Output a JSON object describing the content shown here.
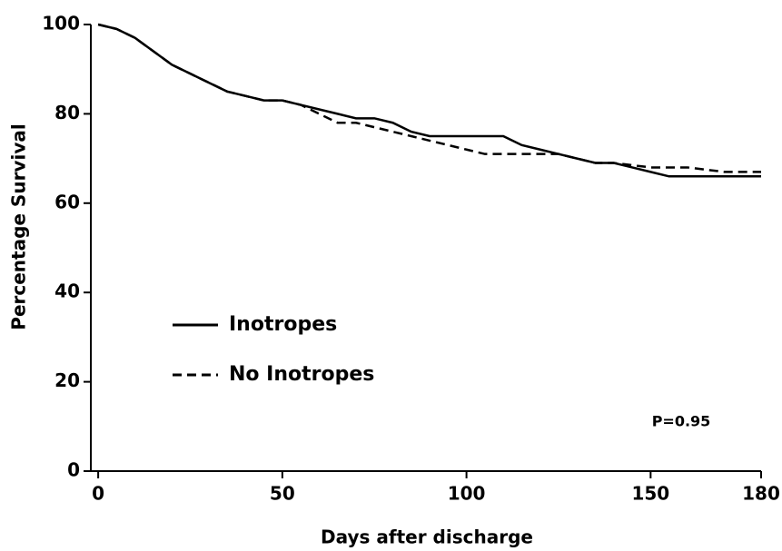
{
  "chart_data": {
    "type": "line",
    "xlabel": "Days after discharge",
    "ylabel": "Percentage Survival",
    "annotation": "P=0.95",
    "xlim": [
      -2,
      180
    ],
    "ylim": [
      0,
      100
    ],
    "xticks": [
      0,
      50,
      100,
      150,
      180
    ],
    "yticks": [
      0,
      20,
      40,
      60,
      80,
      100
    ],
    "legend": "lower left",
    "series": [
      {
        "name": "Inotropes",
        "color": "#000000",
        "dash": "solid",
        "x": [
          0,
          5,
          10,
          15,
          20,
          25,
          30,
          35,
          40,
          45,
          50,
          55,
          60,
          65,
          70,
          75,
          80,
          85,
          90,
          95,
          100,
          105,
          110,
          115,
          120,
          125,
          130,
          135,
          140,
          145,
          150,
          155,
          160,
          170,
          180
        ],
        "values": [
          100,
          99,
          97,
          94,
          91,
          89,
          87,
          85,
          84,
          83,
          83,
          82,
          81,
          80,
          79,
          79,
          78,
          76,
          75,
          75,
          75,
          75,
          75,
          73,
          72,
          71,
          70,
          69,
          69,
          68,
          67,
          66,
          66,
          66,
          66
        ]
      },
      {
        "name": "No Inotropes",
        "color": "#000000",
        "dash": "dashed",
        "x": [
          0,
          5,
          10,
          15,
          20,
          25,
          30,
          35,
          40,
          45,
          50,
          55,
          60,
          65,
          70,
          75,
          80,
          85,
          90,
          95,
          100,
          105,
          110,
          115,
          120,
          125,
          130,
          135,
          140,
          150,
          160,
          170,
          180
        ],
        "values": [
          100,
          99,
          97,
          94,
          91,
          89,
          87,
          85,
          84,
          83,
          83,
          82,
          80,
          78,
          78,
          77,
          76,
          75,
          74,
          73,
          72,
          71,
          71,
          71,
          71,
          71,
          70,
          69,
          69,
          68,
          68,
          67,
          67
        ]
      }
    ]
  }
}
